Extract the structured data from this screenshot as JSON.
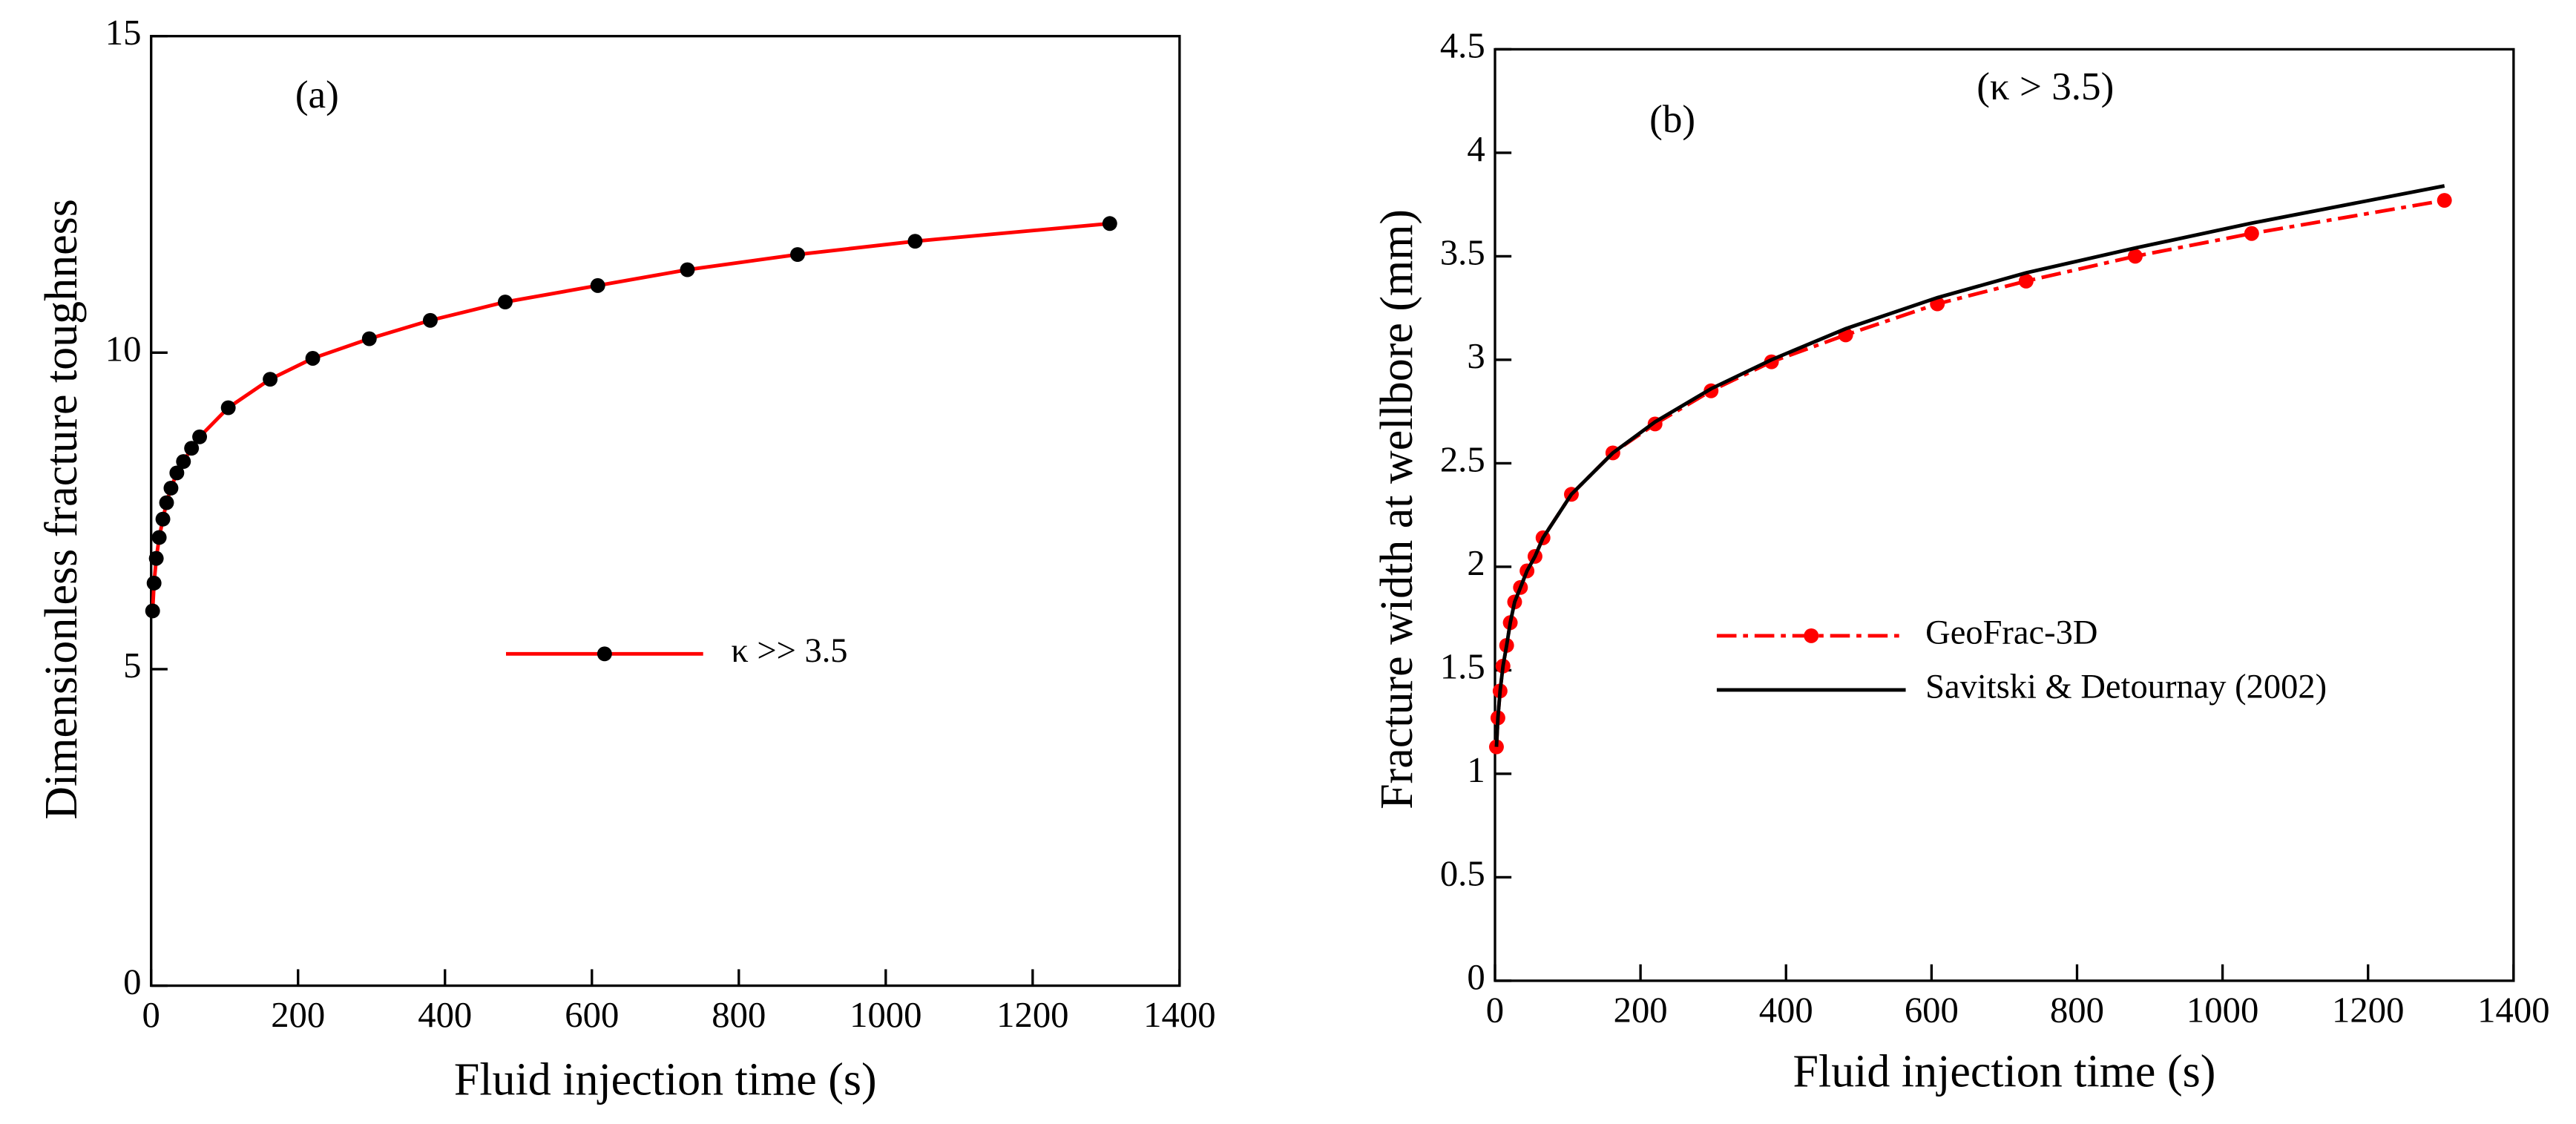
{
  "chart_data": [
    {
      "type": "line",
      "annotations": [
        "(a)"
      ],
      "xlabel": "Fluid injection time (s)",
      "ylabel": "Dimensionless fracture toughness",
      "x": [
        2,
        4,
        7,
        11,
        16,
        21,
        27,
        35,
        44,
        55,
        66,
        105,
        162,
        220,
        297,
        380,
        482,
        608,
        730,
        880,
        1040,
        1305
      ],
      "series": [
        {
          "name": "κ >> 3.5",
          "color": "#ff0000",
          "marker_color": "#000000",
          "marker": true,
          "linestyle": "solid",
          "values": [
            5.92,
            6.36,
            6.75,
            7.08,
            7.37,
            7.63,
            7.86,
            8.1,
            8.28,
            8.49,
            8.67,
            9.13,
            9.58,
            9.91,
            10.22,
            10.51,
            10.8,
            11.06,
            11.31,
            11.55,
            11.76,
            12.04
          ]
        }
      ],
      "xlim": [
        0,
        1400
      ],
      "xticks": [
        0,
        200,
        400,
        600,
        800,
        1000,
        1200,
        1400
      ],
      "ylim": [
        0,
        15
      ],
      "yticks": [
        0,
        5,
        10,
        15
      ],
      "grid": false
    },
    {
      "type": "line",
      "annotations": [
        "(b)",
        "(κ > 3.5)"
      ],
      "xlabel": "Fluid injection time (s)",
      "ylabel": "Fracture width at wellbore (mm)",
      "x": [
        2,
        4,
        7,
        11,
        16,
        21,
        27,
        35,
        44,
        55,
        66,
        105,
        162,
        220,
        297,
        380,
        482,
        608,
        730,
        880,
        1040,
        1305
      ],
      "series": [
        {
          "name": "GeoFrac-3D",
          "color": "#ff0000",
          "marker_color": "#ff0000",
          "marker": true,
          "linestyle": "dashdot",
          "values": [
            1.13,
            1.27,
            1.4,
            1.52,
            1.62,
            1.73,
            1.83,
            1.9,
            1.98,
            2.05,
            2.14,
            2.35,
            2.55,
            2.69,
            2.85,
            2.99,
            3.12,
            3.27,
            3.38,
            3.5,
            3.61,
            3.77
          ]
        },
        {
          "name": "Savitski & Detournay (2002)",
          "color": "#000000",
          "marker": false,
          "linestyle": "solid",
          "values": [
            1.13,
            1.27,
            1.4,
            1.52,
            1.62,
            1.73,
            1.83,
            1.9,
            1.98,
            2.05,
            2.14,
            2.35,
            2.55,
            2.7,
            2.86,
            3.0,
            3.15,
            3.3,
            3.42,
            3.54,
            3.66,
            3.84
          ]
        }
      ],
      "xlim": [
        0,
        1400
      ],
      "xticks": [
        0,
        200,
        400,
        600,
        800,
        1000,
        1200,
        1400
      ],
      "ylim": [
        0,
        4.5
      ],
      "yticks": [
        0,
        0.5,
        1,
        1.5,
        2,
        2.5,
        3,
        3.5,
        4,
        4.5
      ],
      "grid": false
    }
  ]
}
